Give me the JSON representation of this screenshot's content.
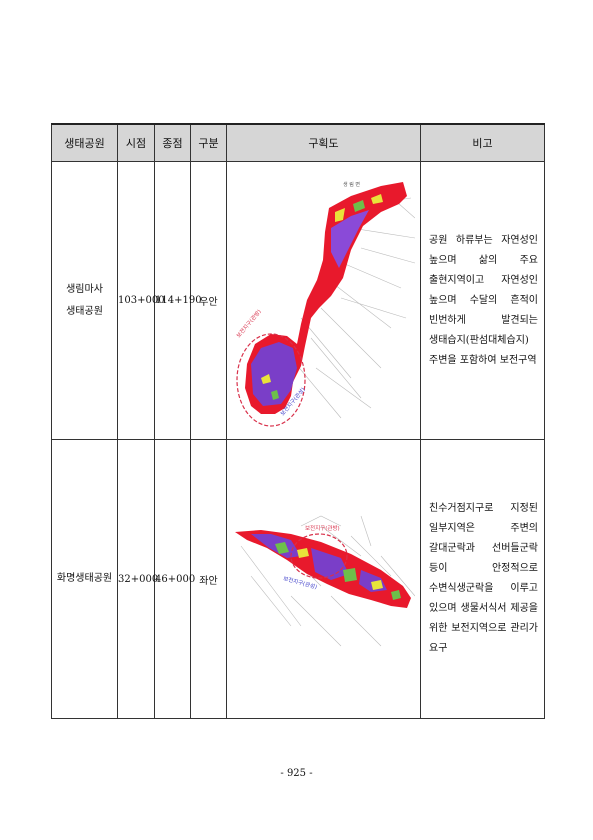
{
  "table": {
    "headers": {
      "park": "생태공원",
      "start": "시점",
      "end": "종점",
      "side": "구분",
      "plan": "구획도",
      "note": "비고"
    },
    "rows": [
      {
        "park_line1": "생림마사",
        "park_line2": "생태공원",
        "start": "103+000",
        "end": "114+190",
        "side": "우안",
        "map_labels": {
          "zone_top": "보전지구(관방)",
          "zone_bottom": "보전지구(관성)",
          "north": "생 림 면"
        },
        "note": "공원 하류부는 자연성인 높으며 삶의 주요 출현지역이고 자연성인 높으며 수달의 흔적이 빈번하게 발견되는 생태습지(판섬대체습지) 주변을 포함하여 보전구역"
      },
      {
        "park_line1": "화명생태공원",
        "start": "32+000",
        "end": "46+000",
        "side": "좌안",
        "map_labels": {
          "zone_top": "보전지구(관방)",
          "zone_bottom": "보전지구(관성)"
        },
        "note": "친수거점지구로 지정된 일부지역은 주변의 갈대군락과 선버들군락 등이 안정적으로 수변식생군락을 이루고 있으며 생물서식서 제공을 위한 보전지역으로 관리가 요구"
      }
    ]
  },
  "page_number": "- 925 -",
  "colors": {
    "header_bg": "#d6d6d6",
    "zone_red": "#e8192c",
    "zone_purple": "#8a4ad8",
    "zone_yellow": "#e8e33a",
    "zone_green": "#6dbf4a",
    "dashed_circle": "#d8304a"
  }
}
